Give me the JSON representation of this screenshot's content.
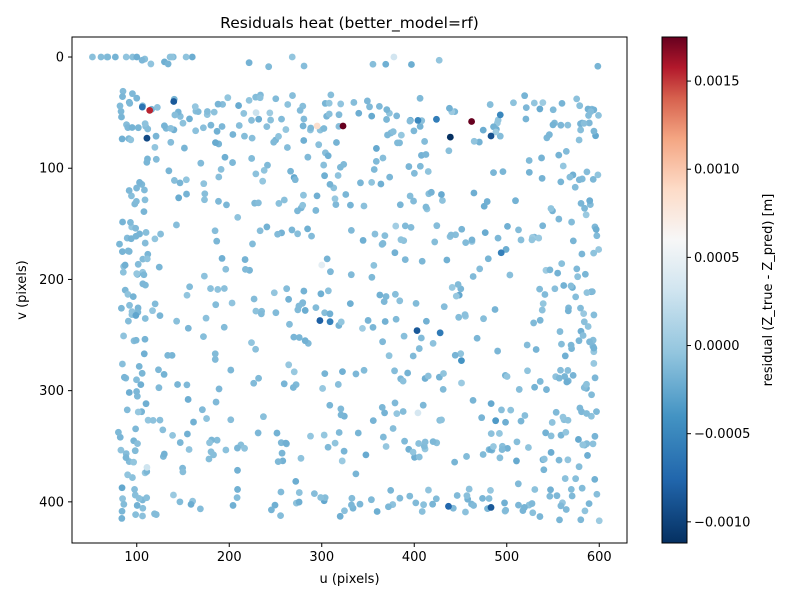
{
  "chart_data": {
    "type": "scatter",
    "title": "Residuals heat (better_model=rf)",
    "xlabel": "u (pixels)",
    "ylabel": "v (pixels)",
    "xlim": [
      30,
      630
    ],
    "ylim": [
      437,
      -18
    ],
    "y_inverted": true,
    "x_ticks": [
      100,
      200,
      300,
      400,
      500,
      600
    ],
    "y_ticks": [
      0,
      100,
      200,
      300,
      400
    ],
    "grid": false,
    "colormap": "RdBu_r",
    "colorbar": {
      "label": "residual (Z_true - Z_pred) [m]",
      "min": -0.00112,
      "max": 0.00175,
      "ticks": [
        -0.001,
        -0.0005,
        0.0,
        0.0005,
        0.001,
        0.0015
      ],
      "tick_labels": [
        "−0.0010",
        "−0.0005",
        "0.0000",
        "0.0005",
        "0.0010",
        "0.0015"
      ]
    },
    "highlight_points": [
      {
        "u": 378,
        "v": 0,
        "r": 0.00032
      },
      {
        "u": 106,
        "v": 45,
        "r": -0.00065
      },
      {
        "u": 140,
        "v": 40,
        "r": -0.00085
      },
      {
        "u": 114,
        "v": 48,
        "r": 0.00155
      },
      {
        "u": 111,
        "v": 73,
        "r": -0.00095
      },
      {
        "u": 229,
        "v": 50,
        "r": 0.00028
      },
      {
        "u": 295,
        "v": 62,
        "r": 0.00085
      },
      {
        "u": 323,
        "v": 62,
        "r": 0.00175
      },
      {
        "u": 404,
        "v": 57,
        "r": -0.0005
      },
      {
        "u": 424,
        "v": 56,
        "r": -0.00058
      },
      {
        "u": 439,
        "v": 72,
        "r": -0.00112
      },
      {
        "u": 462,
        "v": 58,
        "r": 0.00175
      },
      {
        "u": 483,
        "v": 71,
        "r": -0.0009
      },
      {
        "u": 493,
        "v": 52,
        "r": -0.0005
      },
      {
        "u": 300,
        "v": 187,
        "r": 0.00045
      },
      {
        "u": 298,
        "v": 237,
        "r": -0.0008
      },
      {
        "u": 309,
        "v": 238,
        "r": -0.00055
      },
      {
        "u": 403,
        "v": 246,
        "r": -0.00085
      },
      {
        "u": 428,
        "v": 248,
        "r": -0.0006
      },
      {
        "u": 451,
        "v": 273,
        "r": -0.0004
      },
      {
        "u": 494,
        "v": 176,
        "r": -0.00055
      },
      {
        "u": 404,
        "v": 320,
        "r": 0.00035
      },
      {
        "u": 488,
        "v": 327,
        "r": -0.00035
      },
      {
        "u": 111,
        "v": 369,
        "r": 0.0003
      },
      {
        "u": 437,
        "v": 404,
        "r": -0.00075
      },
      {
        "u": 483,
        "v": 405,
        "r": -0.00085
      },
      {
        "u": 380,
        "v": 152,
        "r": 5e-05
      },
      {
        "u": 539,
        "v": 41,
        "r": 2e-05
      },
      {
        "u": 600,
        "v": 417,
        "r": 2e-05
      },
      {
        "u": 344,
        "v": 244,
        "r": 3e-05
      }
    ],
    "background_points": {
      "count": 850,
      "u_range": [
        50,
        600
      ],
      "v_range": [
        0,
        417
      ],
      "typical_residual": -0.00012,
      "residual_spread": 0.00012
    }
  }
}
